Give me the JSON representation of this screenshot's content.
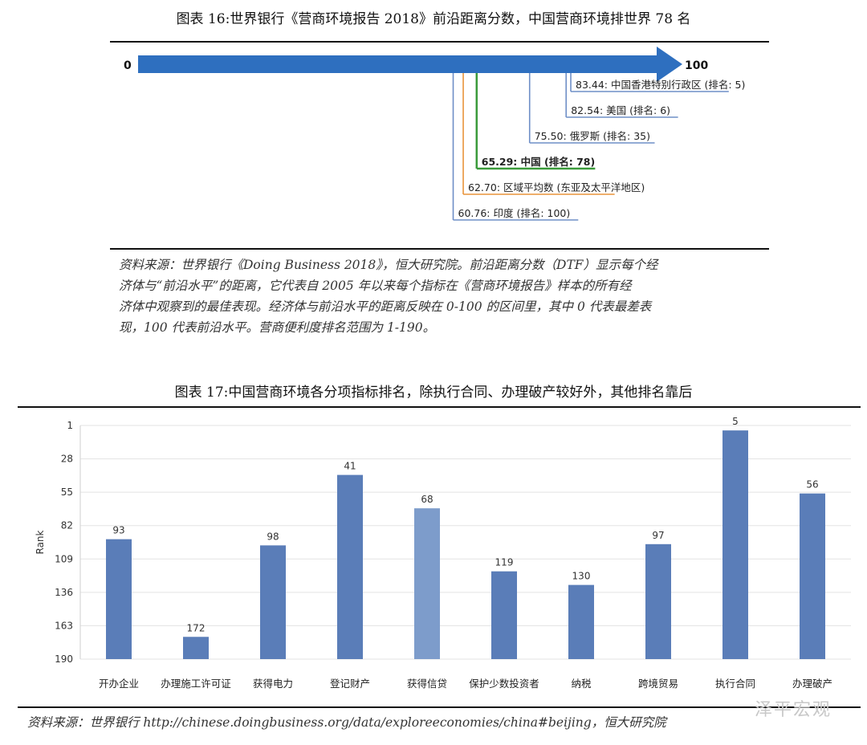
{
  "figure16": {
    "title": "图表 16:世界银行《营商环境报告 2018》前沿距离分数，中国营商环境排世界 78 名",
    "start_label": "0",
    "end_label": "100",
    "source_lines": [
      "资料来源：世界银行《Doing Business 2018》，恒大研究院。前沿距离分数（DTF）显示每个经",
      "济体与“前沿水平”的距离，它代表自 2005 年以来每个指标在《营商环境报告》样本的所有经",
      "济体中观察到的最佳表现。经济体与前沿水平的距离反映在 0-100 的区间里，其中 0 代表最差表",
      "现，100 代表前沿水平。营商便利度排名范围为 1-190。"
    ],
    "colors": {
      "arrow": "#2e6fbf",
      "blue_line": "#6f8fc7",
      "orange_line": "#e8943a",
      "green_line": "#3a9a3a"
    },
    "items": [
      {
        "score": 83.44,
        "label": "83.44: 中国香港特别行政区 (排名: 5)",
        "color": "blue",
        "bold": false
      },
      {
        "score": 82.54,
        "label": "82.54: 美国 (排名: 6)",
        "color": "blue",
        "bold": false
      },
      {
        "score": 75.5,
        "label": "75.50: 俄罗斯 (排名: 35)",
        "color": "blue",
        "bold": false
      },
      {
        "score": 65.29,
        "label": "65.29: 中国 (排名: 78)",
        "color": "green",
        "bold": true
      },
      {
        "score": 62.7,
        "label": "62.70: 区域平均数 (东亚及太平洋地区)",
        "color": "orange",
        "bold": false
      },
      {
        "score": 60.76,
        "label": "60.76: 印度 (排名: 100)",
        "color": "blue",
        "bold": false
      }
    ]
  },
  "figure17": {
    "title": "图表 17:中国营商环境各分项指标排名，除执行合同、办理破产较好外，其他排名靠后",
    "source": "资料来源：世界银行 http://chinese.doingbusiness.org/data/exploreeconomies/china#beijing，恒大研究院",
    "watermark": "泽平宏观"
  },
  "chart_data": {
    "type": "bar",
    "ylabel": "Rank",
    "y_ticks": [
      1,
      28,
      55,
      82,
      109,
      136,
      163,
      190
    ],
    "ylim": [
      1,
      190
    ],
    "y_inverted": true,
    "grid": true,
    "categories": [
      "开办企业",
      "办理施工许可证",
      "获得电力",
      "登记财产",
      "获得信贷",
      "保护少数投资者",
      "纳税",
      "跨境贸易",
      "执行合同",
      "办理破产"
    ],
    "values": [
      93,
      172,
      98,
      41,
      68,
      119,
      130,
      97,
      5,
      56
    ],
    "colors": [
      "#5a7db8",
      "#5a7db8",
      "#5a7db8",
      "#5a7db8",
      "#7d9ccb",
      "#5a7db8",
      "#5a7db8",
      "#5a7db8",
      "#5a7db8",
      "#5a7db8"
    ]
  }
}
